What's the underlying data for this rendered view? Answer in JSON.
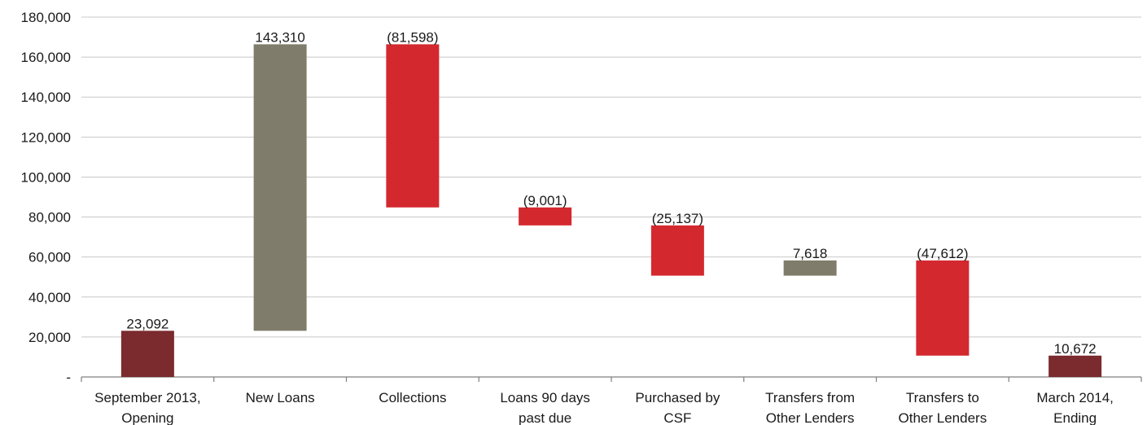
{
  "chart_data": {
    "type": "bar",
    "subtype": "waterfall",
    "categories": [
      [
        "September 2013,",
        "Opening"
      ],
      [
        "New Loans"
      ],
      [
        "Collections"
      ],
      [
        "Loans 90 days",
        "past due"
      ],
      [
        "Purchased by",
        "CSF"
      ],
      [
        "Transfers from",
        "Other Lenders"
      ],
      [
        "Transfers to",
        "Other Lenders"
      ],
      [
        "March 2014,",
        "Ending"
      ]
    ],
    "values": [
      23092,
      143310,
      -81598,
      -9001,
      -25137,
      7618,
      -47612,
      10672
    ],
    "value_labels": [
      "23,092",
      "143,310",
      "(81,598)",
      "(9,001)",
      "(25,137)",
      "7,618",
      "(47,612)",
      "10,672"
    ],
    "bar_kind": [
      "total",
      "increase",
      "decrease",
      "decrease",
      "decrease",
      "increase",
      "decrease",
      "total"
    ],
    "ylim": [
      0,
      180000
    ],
    "yticks": [
      {
        "value": 0,
        "label": "-"
      },
      {
        "value": 20000,
        "label": "20,000"
      },
      {
        "value": 40000,
        "label": "40,000"
      },
      {
        "value": 60000,
        "label": "60,000"
      },
      {
        "value": 80000,
        "label": "80,000"
      },
      {
        "value": 100000,
        "label": "100,000"
      },
      {
        "value": 120000,
        "label": "120,000"
      },
      {
        "value": 140000,
        "label": "140,000"
      },
      {
        "value": 160000,
        "label": "160,000"
      },
      {
        "value": 180000,
        "label": "180,000"
      }
    ],
    "grid": true,
    "legend": "none",
    "colors": {
      "total": "#7b2a2e",
      "increase": "#7f7c6b",
      "decrease": "#d4282f"
    }
  }
}
